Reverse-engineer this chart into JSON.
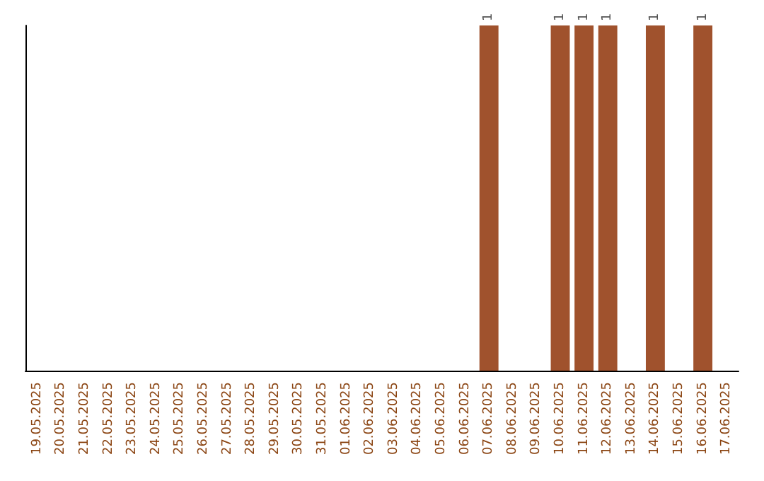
{
  "chart_data": {
    "type": "bar",
    "categories": [
      "19.05.2025",
      "20.05.2025",
      "21.05.2025",
      "22.05.2025",
      "23.05.2025",
      "24.05.2025",
      "25.05.2025",
      "26.05.2025",
      "27.05.2025",
      "28.05.2025",
      "29.05.2025",
      "30.05.2025",
      "31.05.2025",
      "01.06.2025",
      "02.06.2025",
      "03.06.2025",
      "04.06.2025",
      "05.06.2025",
      "06.06.2025",
      "07.06.2025",
      "08.06.2025",
      "09.06.2025",
      "10.06.2025",
      "11.06.2025",
      "12.06.2025",
      "13.06.2025",
      "14.06.2025",
      "15.06.2025",
      "16.06.2025",
      "17.06.2025"
    ],
    "values": [
      null,
      null,
      null,
      null,
      null,
      null,
      null,
      null,
      null,
      null,
      null,
      null,
      null,
      null,
      null,
      null,
      null,
      null,
      null,
      1,
      null,
      null,
      1,
      1,
      1,
      null,
      1,
      null,
      1,
      null
    ],
    "data_labels": true,
    "color": "#a0522d",
    "tick_labels": "x",
    "grid": false
  }
}
